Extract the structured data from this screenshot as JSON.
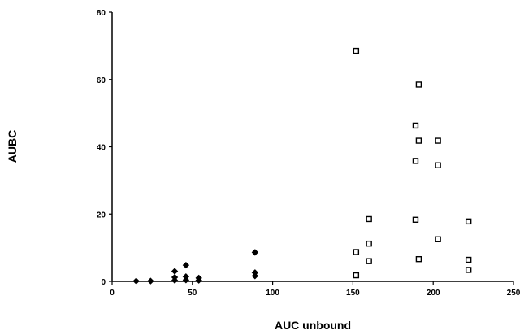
{
  "chart_data": {
    "type": "scatter",
    "title": "",
    "xlabel": "AUC unbound",
    "ylabel": "AUBC",
    "xlim": [
      0,
      250
    ],
    "ylim": [
      0,
      80
    ],
    "xticks": [
      "0",
      "50",
      "100",
      "150",
      "200",
      "250"
    ],
    "yticks": [
      "0",
      "20",
      "40",
      "60",
      "80"
    ],
    "grid": false,
    "legend": "none",
    "series": [
      {
        "marker": "filled-diamond",
        "color": "#000000",
        "points": [
          [
            15,
            0.1
          ],
          [
            24,
            0.1
          ],
          [
            39,
            0.3
          ],
          [
            39,
            1.2
          ],
          [
            39,
            3.0
          ],
          [
            46,
            0.4
          ],
          [
            46,
            1.4
          ],
          [
            46,
            4.8
          ],
          [
            54,
            0.3
          ],
          [
            54,
            1.0
          ],
          [
            89,
            1.6
          ],
          [
            89,
            2.6
          ],
          [
            89,
            8.6
          ]
        ]
      },
      {
        "marker": "open-square",
        "color": "#000000",
        "points": [
          [
            152,
            68.5
          ],
          [
            152,
            8.7
          ],
          [
            152,
            1.8
          ],
          [
            160,
            18.5
          ],
          [
            160,
            11.2
          ],
          [
            160,
            6.0
          ],
          [
            189,
            46.3
          ],
          [
            189,
            35.8
          ],
          [
            189,
            18.3
          ],
          [
            191,
            58.5
          ],
          [
            191,
            41.8
          ],
          [
            191,
            6.6
          ],
          [
            203,
            41.8
          ],
          [
            203,
            34.5
          ],
          [
            203,
            12.5
          ],
          [
            222,
            17.8
          ],
          [
            222,
            6.4
          ],
          [
            222,
            3.4
          ]
        ]
      }
    ]
  }
}
